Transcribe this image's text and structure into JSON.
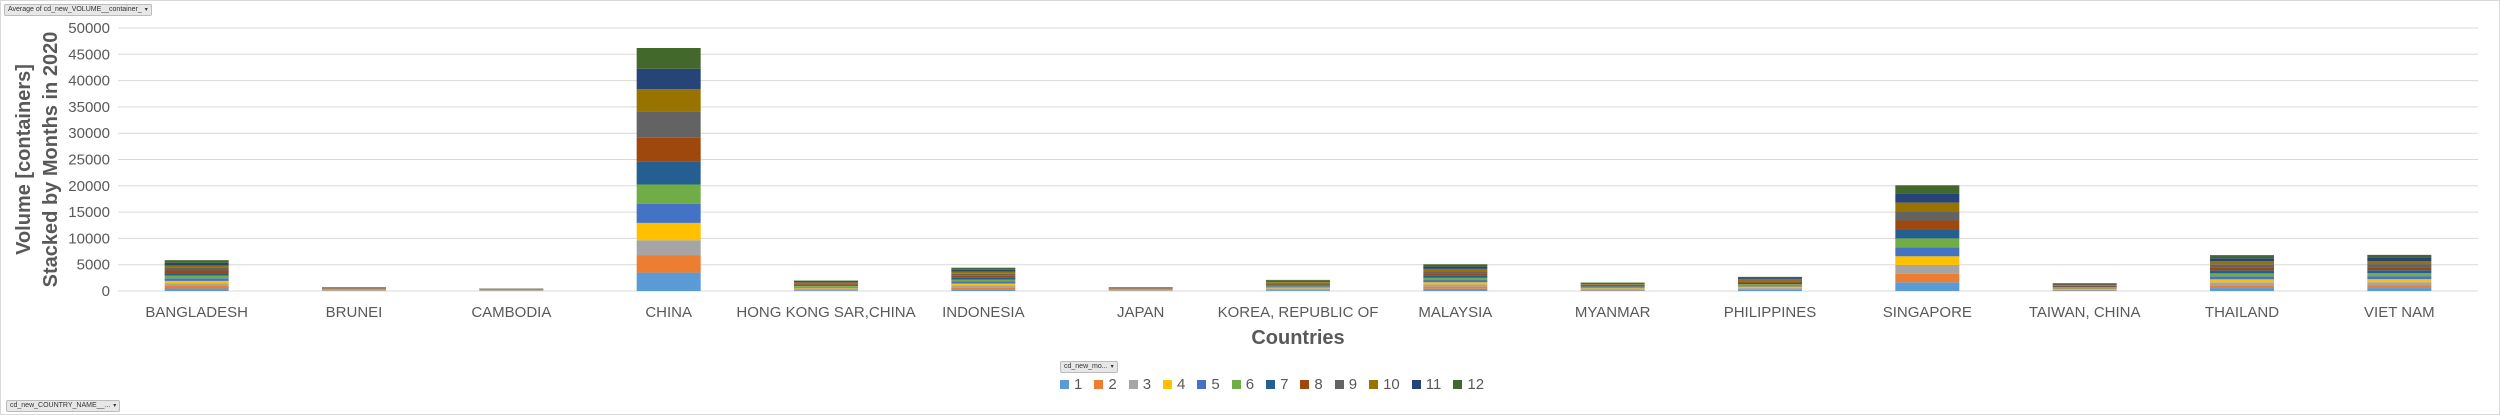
{
  "pivot": {
    "value_field": "Average of cd_new_VOLUME__container_",
    "legend_field": "cd_new_mo...",
    "axis_field": "cd_new_COUNTRY_NAME__..."
  },
  "chart_data": {
    "type": "bar",
    "stacked": true,
    "title": "",
    "xlabel": "Countries",
    "ylabel_line1": "Volume [containers]",
    "ylabel_line2": "Stacked by Months in 2020",
    "ylim": [
      0,
      50000
    ],
    "yticks": [
      0,
      5000,
      10000,
      15000,
      20000,
      25000,
      30000,
      35000,
      40000,
      45000,
      50000
    ],
    "grid": true,
    "legend_position": "bottom",
    "categories": [
      "BANGLADESH",
      "BRUNEI",
      "CAMBODIA",
      "CHINA",
      "HONG KONG SAR,CHINA",
      "INDONESIA",
      "JAPAN",
      "KOREA, REPUBLIC OF",
      "MALAYSIA",
      "MYANMAR",
      "PHILIPPINES",
      "SINGAPORE",
      "TAIWAN, CHINA",
      "THAILAND",
      "VIET NAM"
    ],
    "series": [
      {
        "name": "1",
        "color": "#5b9bd5",
        "values": [
          480,
          60,
          40,
          3500,
          160,
          360,
          60,
          170,
          420,
          130,
          220,
          1650,
          120,
          560,
          560
        ]
      },
      {
        "name": "2",
        "color": "#ed7d31",
        "values": [
          470,
          60,
          40,
          3250,
          160,
          350,
          60,
          170,
          410,
          130,
          210,
          1650,
          120,
          550,
          560
        ]
      },
      {
        "name": "3",
        "color": "#a5a5a5",
        "values": [
          480,
          60,
          40,
          2900,
          160,
          360,
          60,
          170,
          410,
          130,
          210,
          1650,
          120,
          550,
          560
        ]
      },
      {
        "name": "4",
        "color": "#ffc000",
        "values": [
          490,
          60,
          40,
          3300,
          160,
          360,
          60,
          170,
          420,
          130,
          220,
          1650,
          120,
          560,
          570
        ]
      },
      {
        "name": "5",
        "color": "#4472c4",
        "values": [
          490,
          60,
          40,
          3600,
          160,
          370,
          60,
          170,
          420,
          130,
          220,
          1700,
          120,
          560,
          570
        ]
      },
      {
        "name": "6",
        "color": "#70ad47",
        "values": [
          500,
          60,
          40,
          3700,
          160,
          370,
          60,
          180,
          420,
          130,
          220,
          1700,
          120,
          570,
          570
        ]
      },
      {
        "name": "7",
        "color": "#255e91",
        "values": [
          500,
          60,
          40,
          4400,
          170,
          370,
          60,
          180,
          420,
          130,
          230,
          1700,
          130,
          570,
          570
        ]
      },
      {
        "name": "8",
        "color": "#9e480e",
        "values": [
          490,
          60,
          40,
          4500,
          170,
          370,
          60,
          180,
          430,
          130,
          230,
          1700,
          130,
          570,
          580
        ]
      },
      {
        "name": "9",
        "color": "#636363",
        "values": [
          480,
          60,
          40,
          5000,
          170,
          370,
          60,
          180,
          430,
          140,
          230,
          1700,
          130,
          580,
          580
        ]
      },
      {
        "name": "10",
        "color": "#997300",
        "values": [
          480,
          60,
          40,
          4200,
          170,
          380,
          60,
          180,
          430,
          140,
          230,
          1700,
          130,
          580,
          580
        ]
      },
      {
        "name": "11",
        "color": "#264478",
        "values": [
          490,
          60,
          40,
          3900,
          170,
          380,
          60,
          180,
          430,
          140,
          230,
          1650,
          130,
          580,
          580
        ]
      },
      {
        "name": "12",
        "color": "#43682b",
        "values": [
          510,
          60,
          40,
          3950,
          170,
          390,
          60,
          180,
          440,
          140,
          240,
          1650,
          130,
          590,
          590
        ]
      }
    ]
  }
}
